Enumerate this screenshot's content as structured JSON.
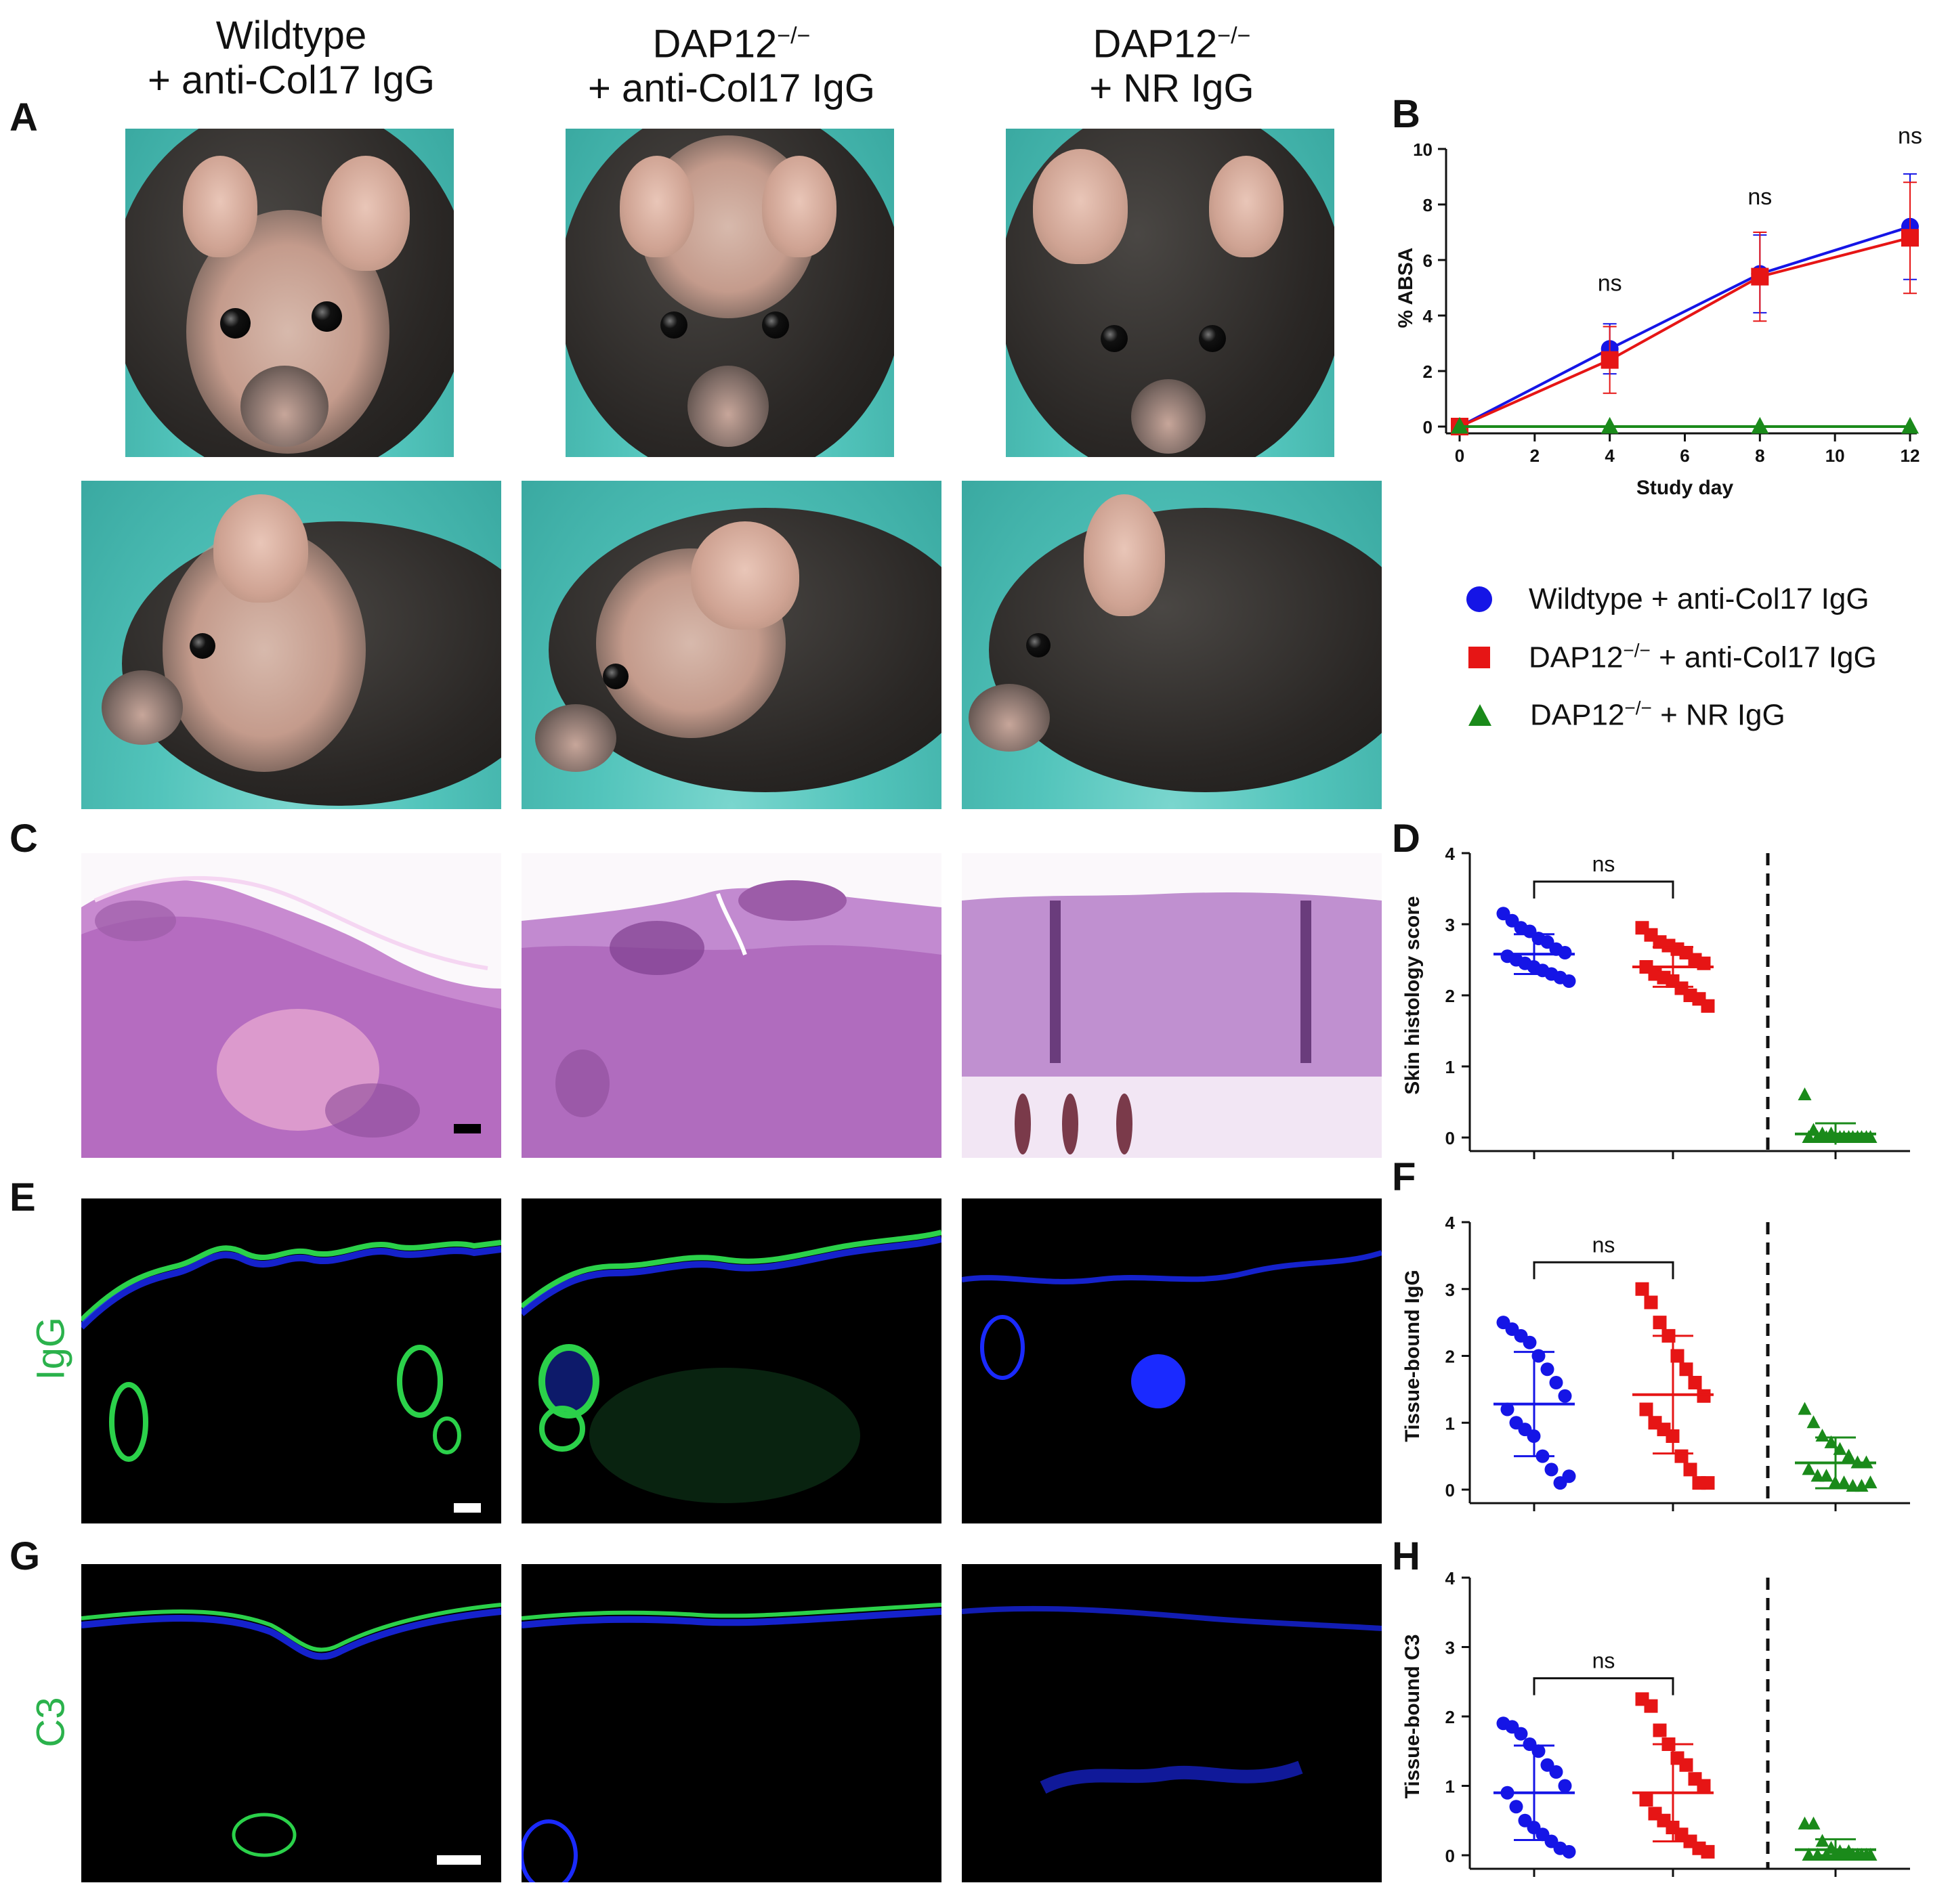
{
  "panel_labels": {
    "A": "A",
    "B": "B",
    "C": "C",
    "D": "D",
    "E": "E",
    "F": "F",
    "G": "G",
    "H": "H"
  },
  "column_titles": [
    {
      "line1": "Wildtype",
      "line2": "+ anti-Col17 IgG"
    },
    {
      "line1_main": "DAP12",
      "line1_sup": "−/−",
      "line2": "+ anti-Col17 IgG"
    },
    {
      "line1_main": "DAP12",
      "line1_sup": "−/−",
      "line2": "+ NR IgG"
    }
  ],
  "row_labels": {
    "igg": "IgG",
    "c3": "C3"
  },
  "legend": [
    {
      "main": "Wildtype + anti-Col17 IgG",
      "color": "#1515e6",
      "marker": "circle"
    },
    {
      "main": "DAP12",
      "sup": "−/−",
      "rest": " + anti-Col17 IgG",
      "color": "#e61515",
      "marker": "square"
    },
    {
      "main": "DAP12",
      "sup": "−/−",
      "rest": " + NR IgG",
      "color": "#1a8a1a",
      "marker": "triangle"
    }
  ],
  "colors": {
    "wt": "#1515e6",
    "dap": "#e61515",
    "nr": "#1a8a1a",
    "fluo_green": "#2bd14a",
    "fluo_blue": "#1a2aff"
  },
  "chart_data": [
    {
      "id": "B",
      "type": "line",
      "xlabel": "Study day",
      "ylabel": "% ABSA",
      "xlim": [
        0,
        12
      ],
      "ylim": [
        0,
        10
      ],
      "xticks": [
        0,
        2,
        4,
        6,
        8,
        10,
        12
      ],
      "yticks": [
        0,
        2,
        4,
        6,
        8,
        10
      ],
      "x": [
        0,
        4,
        8,
        12
      ],
      "series": [
        {
          "name": "Wildtype + anti-Col17 IgG",
          "values": [
            0,
            2.8,
            5.5,
            7.2
          ],
          "err": [
            0,
            0.9,
            1.4,
            1.9
          ]
        },
        {
          "name": "DAP12−/− + anti-Col17 IgG",
          "values": [
            0,
            2.4,
            5.4,
            6.8
          ],
          "err": [
            0,
            1.2,
            1.6,
            2.0
          ]
        },
        {
          "name": "DAP12−/− + NR IgG",
          "values": [
            0,
            0,
            0,
            0
          ],
          "err": [
            0,
            0,
            0,
            0
          ]
        }
      ],
      "annotations": [
        {
          "x": 4,
          "y": 4.7,
          "text": "ns"
        },
        {
          "x": 8,
          "y": 7.8,
          "text": "ns"
        },
        {
          "x": 12,
          "y": 10.0,
          "text": "ns"
        }
      ]
    },
    {
      "id": "D",
      "type": "scatter",
      "ylabel": "Skin histology score",
      "ylim": [
        0,
        4
      ],
      "yticks": [
        0,
        1,
        2,
        3,
        4
      ],
      "significance": "ns",
      "groups": [
        {
          "name": "Wildtype + anti-Col17 IgG",
          "points": [
            3.15,
            3.05,
            2.95,
            2.9,
            2.8,
            2.75,
            2.65,
            2.6,
            2.55,
            2.5,
            2.45,
            2.4,
            2.35,
            2.3,
            2.25,
            2.2
          ],
          "mean": 2.58,
          "sd": 0.28
        },
        {
          "name": "DAP12−/− + anti-Col17 IgG",
          "points": [
            2.95,
            2.85,
            2.75,
            2.7,
            2.65,
            2.6,
            2.5,
            2.45,
            2.4,
            2.3,
            2.25,
            2.2,
            2.1,
            2.0,
            1.95,
            1.85
          ],
          "mean": 2.4,
          "sd": 0.28
        },
        {
          "name": "DAP12−/− + NR IgG",
          "points": [
            0.6,
            0.1,
            0.05,
            0.05,
            0,
            0,
            0,
            0,
            0,
            0,
            0,
            0,
            0,
            0,
            0,
            0
          ],
          "mean": 0.05,
          "sd": 0.15
        }
      ]
    },
    {
      "id": "F",
      "type": "scatter",
      "ylabel": "Tissue-bound IgG",
      "ylim": [
        0,
        4
      ],
      "yticks": [
        0,
        1,
        2,
        3,
        4
      ],
      "significance": "ns",
      "groups": [
        {
          "name": "Wildtype + anti-Col17 IgG",
          "points": [
            2.5,
            2.4,
            2.3,
            2.2,
            2.0,
            1.8,
            1.6,
            1.4,
            1.2,
            1.0,
            0.9,
            0.8,
            0.5,
            0.3,
            0.1,
            0.2
          ],
          "mean": 1.28,
          "sd": 0.78
        },
        {
          "name": "DAP12−/− + anti-Col17 IgG",
          "points": [
            3.0,
            2.8,
            2.5,
            2.3,
            2.0,
            1.8,
            1.6,
            1.4,
            1.2,
            1.0,
            0.9,
            0.8,
            0.5,
            0.3,
            0.1,
            0.1
          ],
          "mean": 1.42,
          "sd": 0.88
        },
        {
          "name": "DAP12−/− + NR IgG",
          "points": [
            1.2,
            1.0,
            0.8,
            0.7,
            0.6,
            0.5,
            0.4,
            0.4,
            0.3,
            0.2,
            0.2,
            0.1,
            0.1,
            0.05,
            0.05,
            0.1
          ],
          "mean": 0.4,
          "sd": 0.38
        }
      ]
    },
    {
      "id": "H",
      "type": "scatter",
      "ylabel": "Tissue-bound C3",
      "ylim": [
        0,
        4
      ],
      "yticks": [
        0,
        1,
        2,
        3,
        4
      ],
      "significance": "ns",
      "groups": [
        {
          "name": "Wildtype + anti-Col17 IgG",
          "points": [
            1.9,
            1.85,
            1.75,
            1.6,
            1.5,
            1.3,
            1.2,
            1.0,
            0.9,
            0.7,
            0.5,
            0.4,
            0.3,
            0.2,
            0.1,
            0.05
          ],
          "mean": 0.9,
          "sd": 0.68
        },
        {
          "name": "DAP12−/− + anti-Col17 IgG",
          "points": [
            2.25,
            2.15,
            1.8,
            1.6,
            1.4,
            1.3,
            1.1,
            1.0,
            0.8,
            0.6,
            0.5,
            0.4,
            0.3,
            0.2,
            0.1,
            0.05
          ],
          "mean": 0.9,
          "sd": 0.7
        },
        {
          "name": "DAP12−/− + NR IgG",
          "points": [
            0.45,
            0.45,
            0.2,
            0.1,
            0.05,
            0.05,
            0,
            0,
            0,
            0,
            0,
            0,
            0,
            0,
            0,
            0
          ],
          "mean": 0.08,
          "sd": 0.15
        }
      ]
    }
  ]
}
